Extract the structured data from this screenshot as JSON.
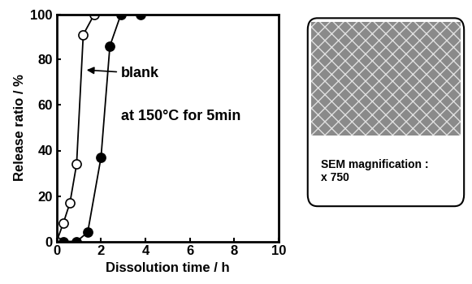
{
  "chart_data": {
    "type": "line",
    "xlabel": "Dissolution time / h",
    "ylabel": "Release ratio / %",
    "xlim": [
      0,
      10
    ],
    "xticks": [
      0,
      2,
      4,
      6,
      8,
      10
    ],
    "ylim": [
      0,
      100
    ],
    "yticks": [
      0,
      20,
      40,
      60,
      80,
      100
    ],
    "grid": false,
    "series": [
      {
        "color": "#000000",
        "marker": "open_circle",
        "x": [
          0,
          0.3,
          0.6,
          0.9,
          1.2,
          1.7
        ],
        "values": [
          0,
          8,
          17,
          34,
          91,
          100
        ]
      },
      {
        "color": "#000000",
        "marker": "filled_circle",
        "x": [
          0.3,
          0.9,
          1.4,
          2.0,
          2.4,
          2.9,
          3.8
        ],
        "values": [
          0,
          0,
          4,
          37,
          86,
          100,
          100
        ]
      }
    ],
    "annotations": [
      "blank",
      "at 150°C for 5min"
    ],
    "panel": {
      "text": "SEM magnification :\nx 750"
    }
  }
}
